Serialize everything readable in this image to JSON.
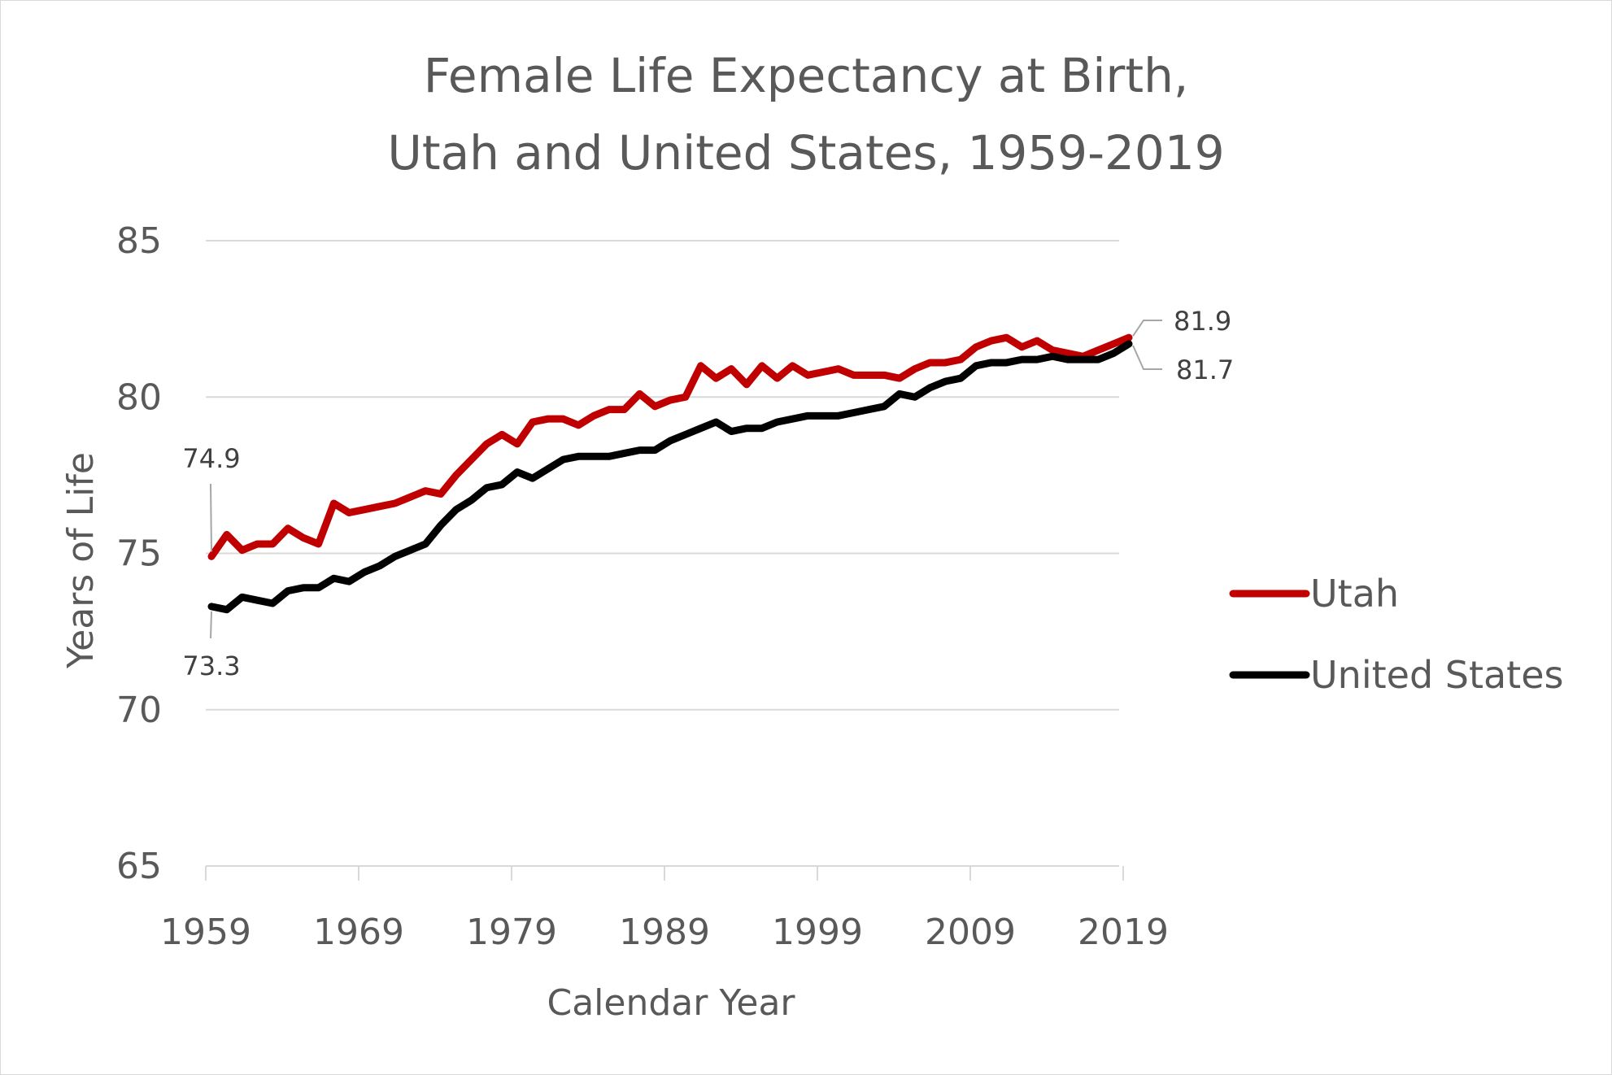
{
  "chart_data": {
    "type": "line",
    "title_lines": [
      "Female Life Expectancy at Birth,",
      "Utah and United States, 1959-2019"
    ],
    "xlabel": "Calendar Year",
    "ylabel": "Years of Life",
    "xlim": [
      1959,
      2019
    ],
    "ylim": [
      65,
      85
    ],
    "x_ticks": [
      "1959",
      "1969",
      "1979",
      "1989",
      "1999",
      "2009",
      "2019"
    ],
    "y_ticks": [
      "65",
      "70",
      "75",
      "80",
      "85"
    ],
    "grid": true,
    "legend_position": "right",
    "x": [
      1959,
      1960,
      1961,
      1962,
      1963,
      1964,
      1965,
      1966,
      1967,
      1968,
      1969,
      1970,
      1971,
      1972,
      1973,
      1974,
      1975,
      1976,
      1977,
      1978,
      1979,
      1980,
      1981,
      1982,
      1983,
      1984,
      1985,
      1986,
      1987,
      1988,
      1989,
      1990,
      1991,
      1992,
      1993,
      1994,
      1995,
      1996,
      1997,
      1998,
      1999,
      2000,
      2001,
      2002,
      2003,
      2004,
      2005,
      2006,
      2007,
      2008,
      2009,
      2010,
      2011,
      2012,
      2013,
      2014,
      2015,
      2016,
      2017,
      2018,
      2019
    ],
    "series": [
      {
        "name": "Utah",
        "color": "#c00000",
        "values": [
          74.9,
          75.6,
          75.1,
          75.3,
          75.3,
          75.8,
          75.5,
          75.3,
          76.6,
          76.3,
          76.4,
          76.5,
          76.6,
          76.8,
          77.0,
          76.9,
          77.5,
          78.0,
          78.5,
          78.8,
          78.5,
          79.2,
          79.3,
          79.3,
          79.1,
          79.4,
          79.6,
          79.6,
          80.1,
          79.7,
          79.9,
          80.0,
          81.0,
          80.6,
          80.9,
          80.4,
          81.0,
          80.6,
          81.0,
          80.7,
          80.8,
          80.9,
          80.7,
          80.7,
          80.7,
          80.6,
          80.9,
          81.1,
          81.1,
          81.2,
          81.6,
          81.8,
          81.9,
          81.6,
          81.8,
          81.5,
          81.4,
          81.3,
          81.5,
          81.7,
          81.9
        ]
      },
      {
        "name": "United States",
        "color": "#000000",
        "values": [
          73.3,
          73.2,
          73.6,
          73.5,
          73.4,
          73.8,
          73.9,
          73.9,
          74.2,
          74.1,
          74.4,
          74.6,
          74.9,
          75.1,
          75.3,
          75.9,
          76.4,
          76.7,
          77.1,
          77.2,
          77.6,
          77.4,
          77.7,
          78.0,
          78.1,
          78.1,
          78.1,
          78.2,
          78.3,
          78.3,
          78.6,
          78.8,
          79.0,
          79.2,
          78.9,
          79.0,
          79.0,
          79.2,
          79.3,
          79.4,
          79.4,
          79.4,
          79.5,
          79.6,
          79.7,
          80.1,
          80.0,
          80.3,
          80.5,
          80.6,
          81.0,
          81.1,
          81.1,
          81.2,
          81.2,
          81.3,
          81.2,
          81.2,
          81.2,
          81.4,
          81.7
        ]
      }
    ],
    "data_labels": [
      {
        "series": 0,
        "point": "first",
        "text": "74.9"
      },
      {
        "series": 1,
        "point": "first",
        "text": "73.3"
      },
      {
        "series": 0,
        "point": "last",
        "text": "81.9"
      },
      {
        "series": 1,
        "point": "last",
        "text": "81.7"
      }
    ]
  }
}
